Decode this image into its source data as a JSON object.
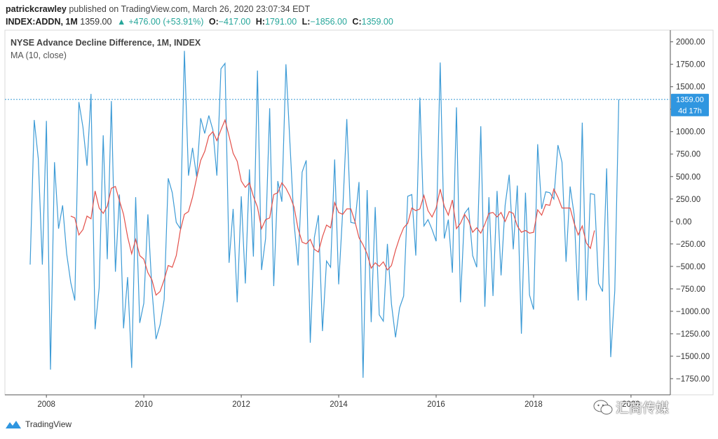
{
  "header": {
    "author": "patrickcrawley",
    "published": "published on TradingView.com, March 26, 2020 23:07:34 EDT",
    "symbol": "INDEX:ADDN, 1M",
    "last": "1359.00",
    "change": "+476.00 (+53.91%)",
    "o_label": "O:",
    "o_value": "−417.00",
    "h_label": "H:",
    "h_value": "1791.00",
    "l_label": "L:",
    "l_value": "−1856.00",
    "c_label": "C:",
    "c_value": "1359.00"
  },
  "legend": {
    "title": "NYSE Advance Decline Difference, 1M, INDEX",
    "ma": "MA (10, close)"
  },
  "price_tag": {
    "value": "1359.00",
    "countdown": "4d 17h"
  },
  "footer": {
    "brand": "TradingView"
  },
  "watermark": {
    "text": "汇商传媒"
  },
  "colors": {
    "series": "#3d9bd6",
    "ma": "#e3504a",
    "tag": "#2f96e0",
    "axis": "#555555"
  },
  "chart_data": {
    "type": "line",
    "title": "NYSE Advance Decline Difference, 1M, INDEX",
    "x_start": "2007-09",
    "x_interval": "1 month",
    "x_ticks": [
      "2008",
      "2010",
      "2012",
      "2014",
      "2016",
      "2018",
      "2020"
    ],
    "y_ticks": [
      "2000.00",
      "1750.00",
      "1500.00",
      "1250.00",
      "1000.00",
      "750.00",
      "500.00",
      "250.00",
      "0.00",
      "−250.00",
      "−500.00",
      "−750.00",
      "−1000.00",
      "−1250.00",
      "−1500.00",
      "−1750.00"
    ],
    "ylim": [
      -1930,
      2130
    ],
    "last_value": 1359,
    "grid": false,
    "series": [
      {
        "name": "NYSE Advance Decline Difference",
        "values": [
          -480,
          1130,
          700,
          -480,
          1120,
          -1650,
          660,
          -80,
          180,
          -360,
          -680,
          -880,
          1330,
          1050,
          620,
          1420,
          -1200,
          -740,
          960,
          -420,
          1340,
          -560,
          300,
          -1190,
          -620,
          -1630,
          270,
          -1130,
          -910,
          80,
          -760,
          -1310,
          -1150,
          -870,
          480,
          320,
          -10,
          -80,
          1900,
          510,
          820,
          500,
          1150,
          980,
          1180,
          1020,
          510,
          1700,
          1760,
          -460,
          140,
          -900,
          280,
          -690,
          580,
          -390,
          1680,
          -540,
          -190,
          1260,
          -720,
          450,
          220,
          1750,
          860,
          -20,
          -490,
          550,
          680,
          -1350,
          -180,
          70,
          -1220,
          -440,
          -510,
          690,
          -700,
          120,
          1140,
          -10,
          -20,
          440,
          -1740,
          350,
          -1120,
          160,
          -1040,
          -1110,
          -250,
          -920,
          -1290,
          -960,
          -830,
          280,
          300,
          -380,
          1380,
          -50,
          20,
          -90,
          -220,
          1770,
          -190,
          20,
          -570,
          1270,
          -900,
          90,
          150,
          -380,
          -510,
          1060,
          -950,
          270,
          -830,
          340,
          -600,
          180,
          520,
          -310,
          400,
          -1250,
          320,
          -820,
          -980,
          860,
          140,
          330,
          320,
          250,
          850,
          660,
          -450,
          390,
          70,
          -880,
          1100,
          -880,
          310,
          300,
          -690,
          -780,
          590,
          -1510,
          -770,
          1359
        ]
      },
      {
        "name": "MA (10, close)",
        "start_index": 9,
        "values": [
          null,
          60,
          40,
          -150,
          -90,
          60,
          30,
          340,
          150,
          90,
          170,
          370,
          390,
          230,
          80,
          -170,
          -360,
          -200,
          -380,
          -420,
          -570,
          -650,
          -820,
          -780,
          -650,
          -490,
          -510,
          -380,
          -100,
          80,
          110,
          270,
          480,
          680,
          780,
          950,
          1000,
          900,
          1020,
          1130,
          950,
          760,
          670,
          450,
          380,
          430,
          280,
          160,
          -80,
          20,
          40,
          300,
          320,
          430,
          370,
          280,
          160,
          -80,
          -230,
          -250,
          -200,
          -310,
          -340,
          -170,
          -40,
          -70,
          210,
          100,
          80,
          140,
          140,
          0,
          -180,
          -260,
          -360,
          -520,
          -460,
          -500,
          -450,
          -540,
          -490,
          -320,
          -180,
          -70,
          -20,
          150,
          120,
          140,
          290,
          120,
          50,
          150,
          360,
          170,
          70,
          240,
          -80,
          -20,
          80,
          10,
          -120,
          -70,
          -130,
          -30,
          90,
          100,
          50,
          100,
          0,
          110,
          90,
          -50,
          -120,
          -100,
          -130,
          -120,
          130,
          70,
          190,
          180,
          360,
          270,
          150,
          150,
          150,
          -20,
          -150,
          -50,
          -240,
          -300,
          -100
        ]
      }
    ]
  }
}
